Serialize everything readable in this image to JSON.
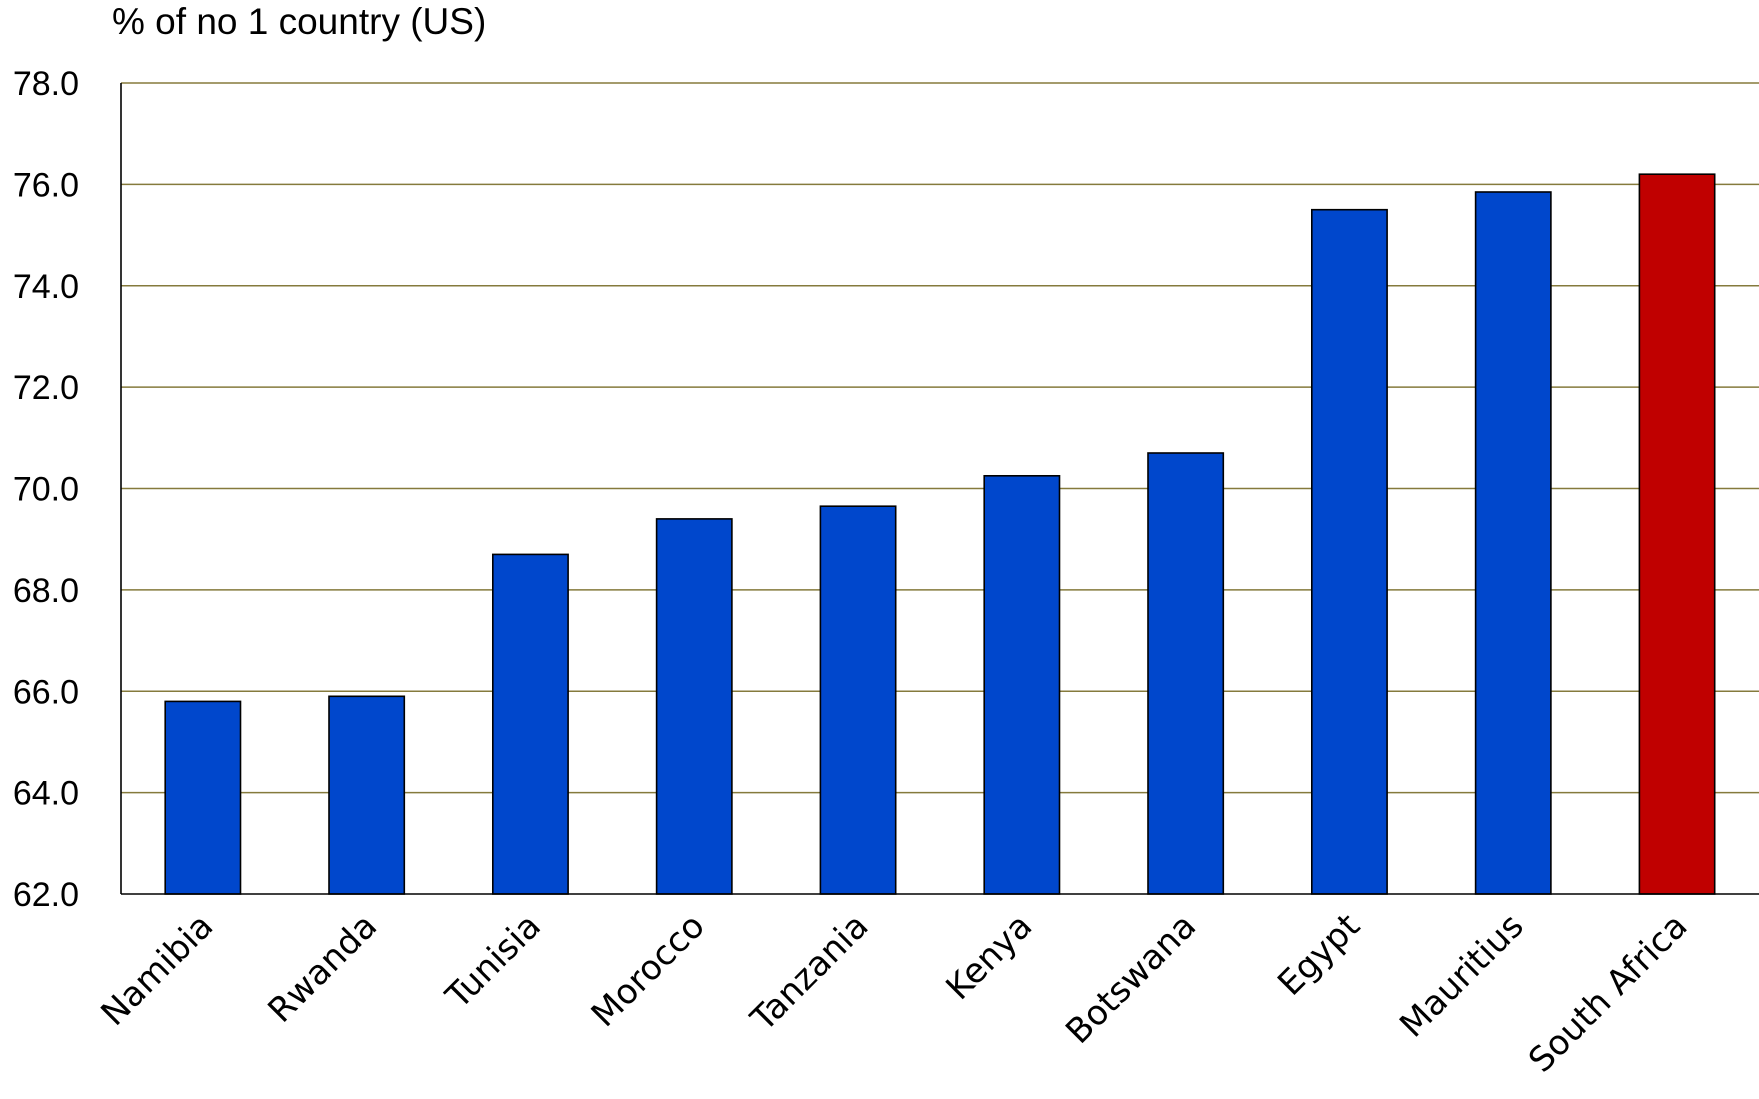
{
  "chart_data": {
    "type": "bar",
    "title": "",
    "xlabel": "",
    "ylabel": "% of no 1 country (US)",
    "ylim": [
      62.0,
      78.0
    ],
    "yticks": [
      "62.0",
      "64.0",
      "66.0",
      "68.0",
      "70.0",
      "72.0",
      "74.0",
      "76.0",
      "78.0"
    ],
    "categories": [
      "Namibia",
      "Rwanda",
      "Tunisia",
      "Morocco",
      "Tanzania",
      "Kenya",
      "Botswana",
      "Egypt",
      "Mauritius",
      "South Africa"
    ],
    "values": [
      65.8,
      65.9,
      68.7,
      69.4,
      69.65,
      70.25,
      70.7,
      75.5,
      75.85,
      76.2
    ],
    "bar_colors": [
      "#0047cc",
      "#0047cc",
      "#0047cc",
      "#0047cc",
      "#0047cc",
      "#0047cc",
      "#0047cc",
      "#0047cc",
      "#0047cc",
      "#c00000"
    ],
    "grid": true,
    "grid_color": "#857a3c",
    "legend": "none"
  }
}
